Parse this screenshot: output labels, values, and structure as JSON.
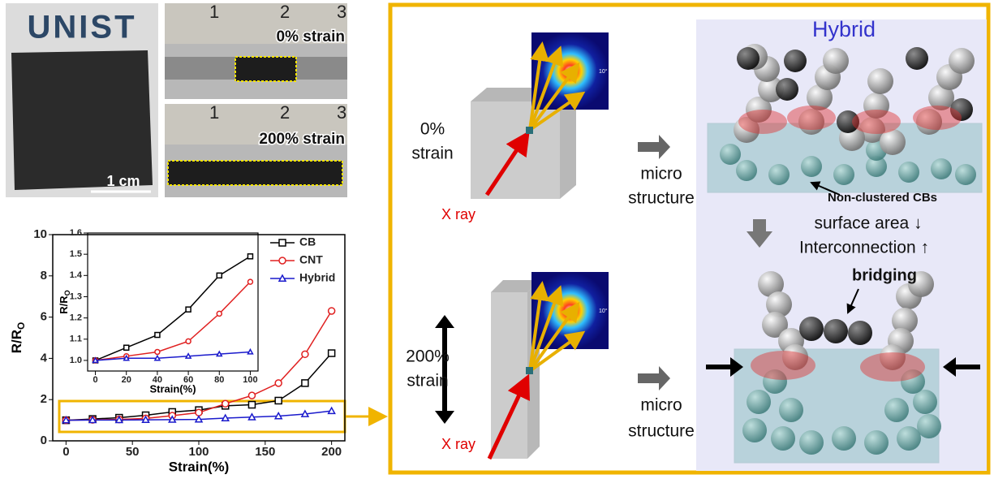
{
  "photos": {
    "logo": "UNIST",
    "scale_bar": "1 cm",
    "ruler_marks": [
      "1",
      "2",
      "3"
    ],
    "strain_0": "0% strain",
    "strain_200": "200% strain"
  },
  "chart_data": [
    {
      "type": "line",
      "x_label": "Strain(%)",
      "y_label": "R/R",
      "y_label_sub": "O",
      "x": [
        0,
        20,
        40,
        60,
        80,
        100,
        120,
        140,
        160,
        180,
        200
      ],
      "xlim": [
        -10,
        210
      ],
      "ylim": [
        0,
        10
      ],
      "xticks": [
        0,
        50,
        100,
        150,
        200
      ],
      "yticks": [
        0,
        2,
        4,
        6,
        8,
        10
      ],
      "legend": "top-right",
      "series": [
        {
          "name": "CB",
          "color": "#000000",
          "marker": "square",
          "values": [
            1.0,
            1.06,
            1.12,
            1.24,
            1.4,
            1.49,
            1.7,
            1.75,
            1.95,
            2.8,
            4.25
          ]
        },
        {
          "name": "CNT",
          "color": "#e02020",
          "marker": "circle",
          "values": [
            1.0,
            1.02,
            1.04,
            1.09,
            1.22,
            1.37,
            1.8,
            2.2,
            2.8,
            4.2,
            6.3
          ]
        },
        {
          "name": "Hybrid",
          "color": "#1a1acc",
          "marker": "triangle",
          "values": [
            1.0,
            1.01,
            1.01,
            1.02,
            1.03,
            1.04,
            1.1,
            1.15,
            1.2,
            1.3,
            1.45
          ]
        }
      ]
    },
    {
      "type": "line",
      "x_label": "Strain(%)",
      "y_label": "R/R",
      "y_label_sub": "O",
      "x": [
        0,
        20,
        40,
        60,
        80,
        100
      ],
      "xlim": [
        -5,
        105
      ],
      "ylim": [
        0.95,
        1.6
      ],
      "xticks": [
        0,
        20,
        40,
        60,
        80,
        100
      ],
      "yticks": [
        {
          "value": 1.0,
          "label": "1.0"
        },
        1.1,
        1.2,
        1.3,
        1.4,
        1.5,
        1.6
      ],
      "series": [
        {
          "color": "#000000",
          "marker": "square",
          "values": [
            1.0,
            1.06,
            1.12,
            1.24,
            1.4,
            1.49
          ]
        },
        {
          "color": "#e02020",
          "marker": "circle",
          "values": [
            1.0,
            1.02,
            1.04,
            1.09,
            1.22,
            1.37
          ]
        },
        {
          "color": "#1a1acc",
          "marker": "triangle",
          "values": [
            1.0,
            1.01,
            1.01,
            1.02,
            1.03,
            1.04
          ]
        }
      ]
    }
  ],
  "diagram": {
    "title": "Hybrid",
    "angle_label": "10°",
    "states": [
      {
        "strain": [
          "0%",
          "strain"
        ],
        "xray": "X ray",
        "arrow": [
          "micro",
          "structure"
        ]
      },
      {
        "strain": [
          "200%",
          "strain"
        ],
        "xray": "X ray",
        "arrow": [
          "micro",
          "structure"
        ]
      }
    ],
    "annotation": "Non-clustered CBs",
    "effects": [
      "surface area ↓",
      "Interconnection ↑"
    ],
    "bridging": "bridging"
  }
}
